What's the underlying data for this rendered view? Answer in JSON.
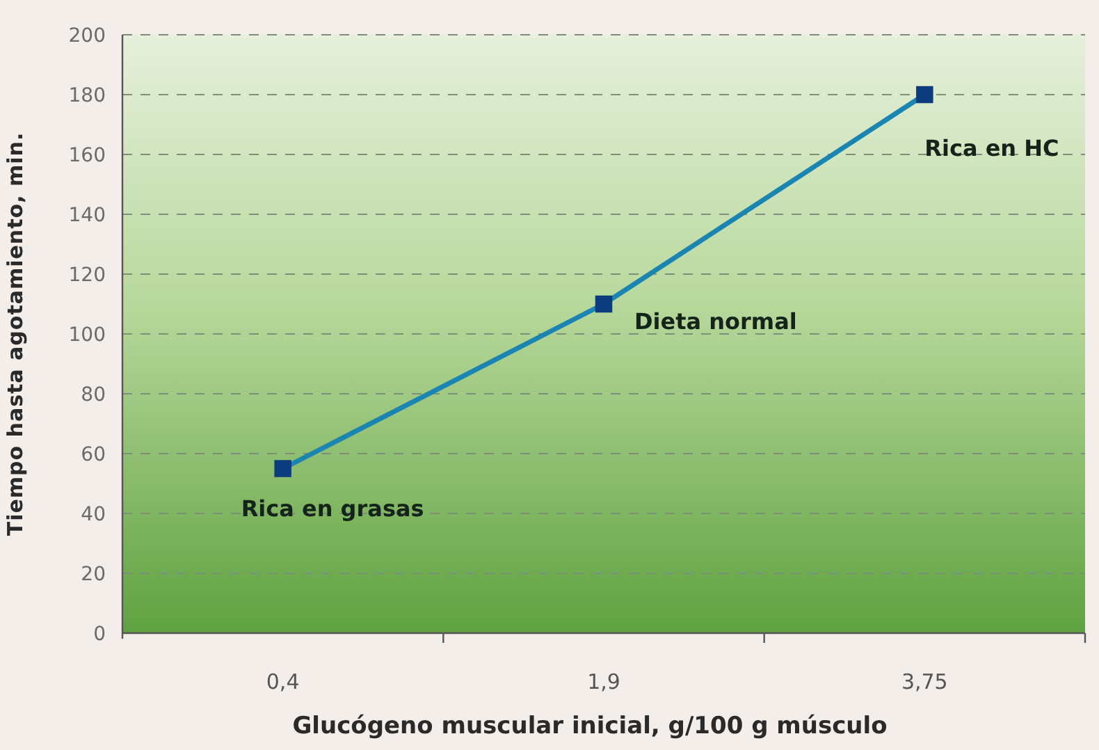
{
  "chart_data": {
    "type": "line",
    "xlabel": "Glucógeno muscular inicial, g/100 g músculo",
    "ylabel": "Tiempo hasta agotamiento, min.",
    "categories": [
      "0,4",
      "1,9",
      "3,75"
    ],
    "series": [
      {
        "color": "#1b85b2",
        "colors": [
          "#0c3c7e",
          "#0c3c7e",
          "#0c3c7e"
        ],
        "values": [
          55,
          110,
          180
        ]
      }
    ],
    "ylim": [
      0,
      200
    ],
    "yticks": [
      0,
      20,
      40,
      60,
      80,
      100,
      120,
      140,
      160,
      180,
      200
    ],
    "grid": "y",
    "marker": "square",
    "line_style": "solid",
    "annotations": [
      {
        "text": "Rica en grasas",
        "x": "0,4",
        "y": 55
      },
      {
        "text": "Dieta normal",
        "x": "1,9",
        "y": 110
      },
      {
        "text": "Rica en HC",
        "x": "3,75",
        "y": 180
      }
    ]
  }
}
